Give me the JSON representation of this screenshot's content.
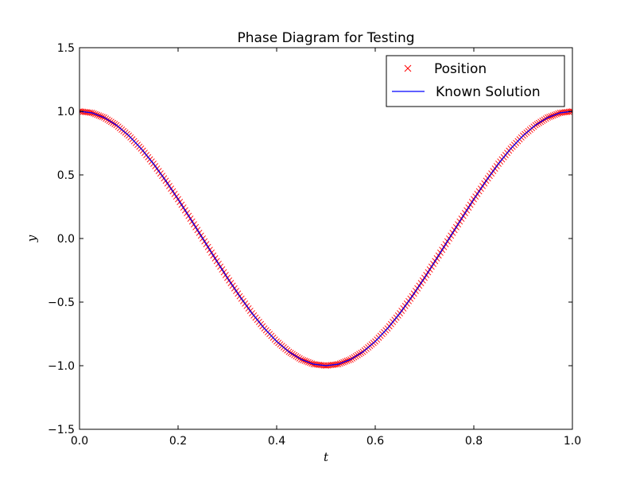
{
  "chart_data": {
    "type": "line",
    "title": "Phase Diagram for Testing",
    "xlabel": "t",
    "ylabel": "y",
    "xlim": [
      0.0,
      1.0
    ],
    "ylim": [
      -1.5,
      1.5
    ],
    "xticks": [
      0.0,
      0.2,
      0.4,
      0.6,
      0.8,
      1.0
    ],
    "yticks": [
      -1.5,
      -1.0,
      -0.5,
      0.0,
      0.5,
      1.0,
      1.5
    ],
    "xtick_labels": [
      "0.0",
      "0.2",
      "0.4",
      "0.6",
      "0.8",
      "1.0"
    ],
    "ytick_labels": [
      "−1.5",
      "−1.0",
      "−0.5",
      "0.0",
      "0.5",
      "1.0",
      "1.5"
    ],
    "grid": false,
    "legend_position": "top-right",
    "series": [
      {
        "name": "Position",
        "marker": "x",
        "color": "#ff0000",
        "x": [
          0.0,
          0.025,
          0.05,
          0.075,
          0.1,
          0.125,
          0.15,
          0.175,
          0.2,
          0.225,
          0.25,
          0.275,
          0.3,
          0.325,
          0.35,
          0.375,
          0.4,
          0.425,
          0.45,
          0.475,
          0.5,
          0.525,
          0.55,
          0.575,
          0.6,
          0.625,
          0.65,
          0.675,
          0.7,
          0.725,
          0.75,
          0.775,
          0.8,
          0.825,
          0.85,
          0.875,
          0.9,
          0.925,
          0.95,
          0.975,
          1.0
        ],
        "y": [
          1.0,
          0.988,
          0.951,
          0.891,
          0.809,
          0.707,
          0.588,
          0.454,
          0.309,
          0.156,
          0.0,
          -0.156,
          -0.309,
          -0.454,
          -0.588,
          -0.707,
          -0.809,
          -0.891,
          -0.951,
          -0.988,
          -1.0,
          -0.988,
          -0.951,
          -0.891,
          -0.809,
          -0.707,
          -0.588,
          -0.454,
          -0.309,
          -0.156,
          0.0,
          0.156,
          0.309,
          0.454,
          0.588,
          0.707,
          0.809,
          0.891,
          0.951,
          0.988,
          1.0
        ]
      },
      {
        "name": "Known Solution",
        "marker": "line",
        "color": "#0000ff",
        "x": [
          0.0,
          0.025,
          0.05,
          0.075,
          0.1,
          0.125,
          0.15,
          0.175,
          0.2,
          0.225,
          0.25,
          0.275,
          0.3,
          0.325,
          0.35,
          0.375,
          0.4,
          0.425,
          0.45,
          0.475,
          0.5,
          0.525,
          0.55,
          0.575,
          0.6,
          0.625,
          0.65,
          0.675,
          0.7,
          0.725,
          0.75,
          0.775,
          0.8,
          0.825,
          0.85,
          0.875,
          0.9,
          0.925,
          0.95,
          0.975,
          1.0
        ],
        "y": [
          1.0,
          0.988,
          0.951,
          0.891,
          0.809,
          0.707,
          0.588,
          0.454,
          0.309,
          0.156,
          0.0,
          -0.156,
          -0.309,
          -0.454,
          -0.588,
          -0.707,
          -0.809,
          -0.891,
          -0.951,
          -0.988,
          -1.0,
          -0.988,
          -0.951,
          -0.891,
          -0.809,
          -0.707,
          -0.588,
          -0.454,
          -0.309,
          -0.156,
          0.0,
          0.156,
          0.309,
          0.454,
          0.588,
          0.707,
          0.809,
          0.891,
          0.951,
          0.988,
          1.0
        ]
      }
    ]
  }
}
